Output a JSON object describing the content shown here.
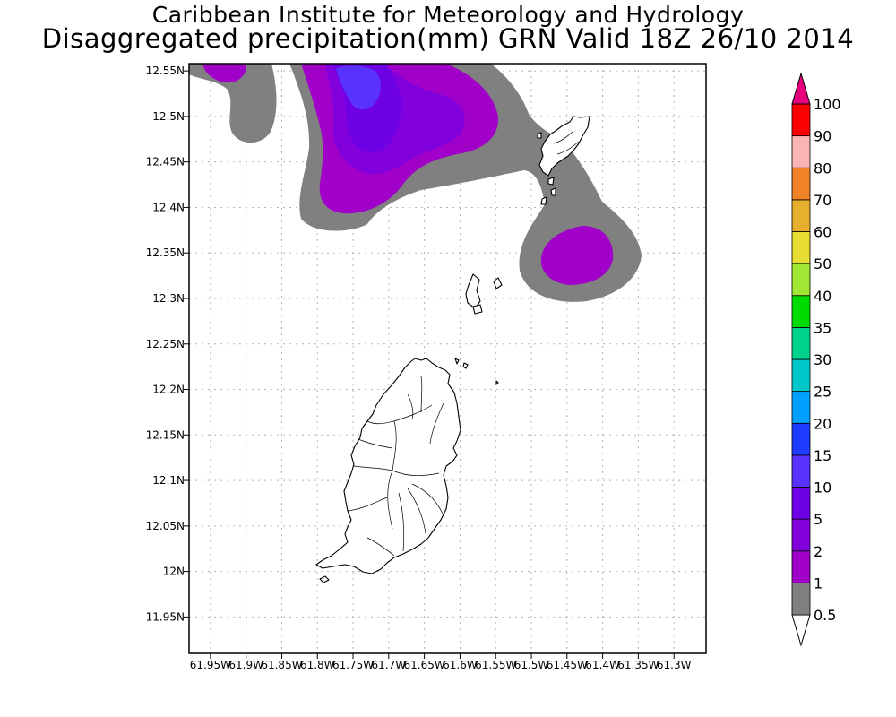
{
  "title": "Caribbean Institute for Meteorology and Hydrology",
  "subtitle": "Disaggregated precipitation(mm) GRN Valid 18Z 26/10 2014",
  "map": {
    "lon_range": [
      -61.98,
      -61.255
    ],
    "lat_range": [
      11.91,
      12.558
    ],
    "lat_ticks": [
      {
        "value": 12.55,
        "label": "12.55N"
      },
      {
        "value": 12.5,
        "label": "12.5N"
      },
      {
        "value": 12.45,
        "label": "12.45N"
      },
      {
        "value": 12.4,
        "label": "12.4N"
      },
      {
        "value": 12.35,
        "label": "12.35N"
      },
      {
        "value": 12.3,
        "label": "12.3N"
      },
      {
        "value": 12.25,
        "label": "12.25N"
      },
      {
        "value": 12.2,
        "label": "12.2N"
      },
      {
        "value": 12.15,
        "label": "12.15N"
      },
      {
        "value": 12.1,
        "label": "12.1N"
      },
      {
        "value": 12.05,
        "label": "12.05N"
      },
      {
        "value": 12.0,
        "label": "12N"
      },
      {
        "value": 11.95,
        "label": "11.95N"
      }
    ],
    "lon_ticks": [
      {
        "value": -61.95,
        "label": "61.95W"
      },
      {
        "value": -61.9,
        "label": "61.9W"
      },
      {
        "value": -61.85,
        "label": "61.85W"
      },
      {
        "value": -61.8,
        "label": "61.8W"
      },
      {
        "value": -61.75,
        "label": "61.75W"
      },
      {
        "value": -61.7,
        "label": "61.7W"
      },
      {
        "value": -61.65,
        "label": "61.65W"
      },
      {
        "value": -61.6,
        "label": "61.6W"
      },
      {
        "value": -61.55,
        "label": "61.55W"
      },
      {
        "value": -61.5,
        "label": "61.5W"
      },
      {
        "value": -61.45,
        "label": "61.45W"
      },
      {
        "value": -61.4,
        "label": "61.4W"
      },
      {
        "value": -61.35,
        "label": "61.35W"
      },
      {
        "value": -61.3,
        "label": "61.3W"
      }
    ],
    "grid": true
  },
  "colorbar": {
    "levels": [
      "0.5",
      "1",
      "2",
      "5",
      "10",
      "15",
      "20",
      "25",
      "30",
      "35",
      "40",
      "50",
      "60",
      "70",
      "80",
      "90",
      "100"
    ],
    "colors": [
      "#808080",
      "#a000c8",
      "#8200dc",
      "#6e00e6",
      "#5a32ff",
      "#1e3cff",
      "#00a0ff",
      "#00c8c8",
      "#00d28c",
      "#00dc00",
      "#a0e632",
      "#e6dc32",
      "#e6af2d",
      "#f08228",
      "#fab4b4",
      "#fa0000",
      "#f03c50",
      "#e6007d"
    ],
    "under_color": "#ffffff",
    "over_color": "#e6007d"
  }
}
